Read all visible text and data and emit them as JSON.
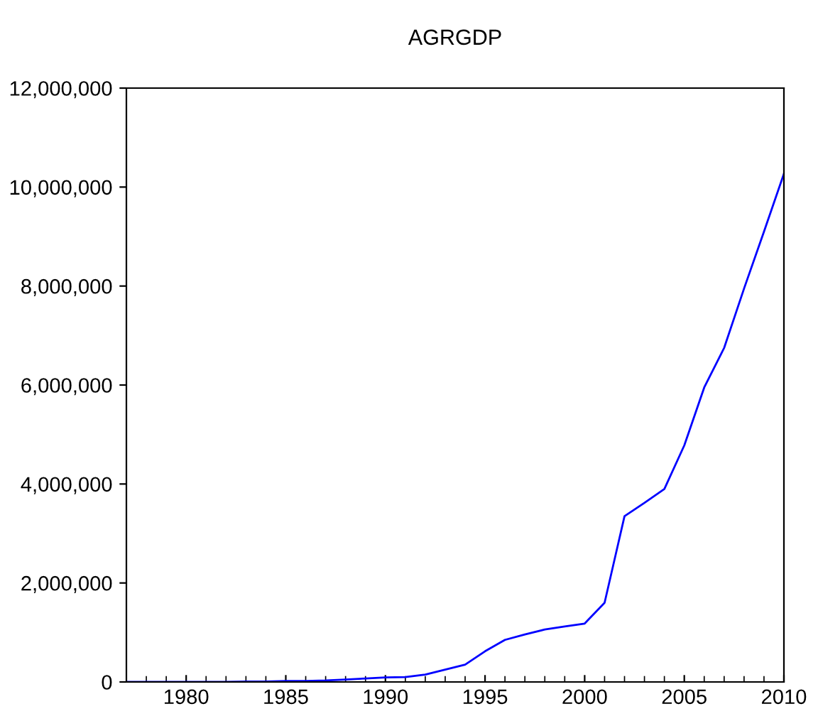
{
  "chart_data": {
    "type": "line",
    "title": "AGRGDP",
    "x": [
      1977,
      1978,
      1979,
      1980,
      1981,
      1982,
      1983,
      1984,
      1985,
      1986,
      1987,
      1988,
      1989,
      1990,
      1991,
      1992,
      1993,
      1994,
      1995,
      1996,
      1997,
      1998,
      1999,
      2000,
      2001,
      2002,
      2003,
      2004,
      2005,
      2006,
      2007,
      2008,
      2009,
      2010
    ],
    "series": [
      {
        "color": "#0000ff",
        "values": [
          0,
          0,
          0,
          0,
          0,
          0,
          10000,
          10000,
          20000,
          20000,
          30000,
          50000,
          70000,
          90000,
          100000,
          150000,
          250000,
          350000,
          620000,
          850000,
          960000,
          1060000,
          1120000,
          1180000,
          1600000,
          3350000,
          3620000,
          3900000,
          4780000,
          5950000,
          6750000,
          7950000,
          9100000,
          10270000
        ]
      }
    ],
    "xlim": [
      1977,
      2010
    ],
    "xticks": [
      1980,
      1985,
      1990,
      1995,
      2000,
      2005,
      2010
    ],
    "ylim": [
      0,
      12000000
    ],
    "yticks": [
      {
        "value": 0,
        "label": "0"
      },
      {
        "value": 2000000,
        "label": "2,000,000"
      },
      {
        "value": 4000000,
        "label": "4,000,000"
      },
      {
        "value": 6000000,
        "label": "6,000,000"
      },
      {
        "value": 8000000,
        "label": "8,000,000"
      },
      {
        "value": 10000000,
        "label": "10,000,000"
      },
      {
        "value": 12000000,
        "label": "12,000,000"
      }
    ],
    "grid": false,
    "legend": false
  }
}
